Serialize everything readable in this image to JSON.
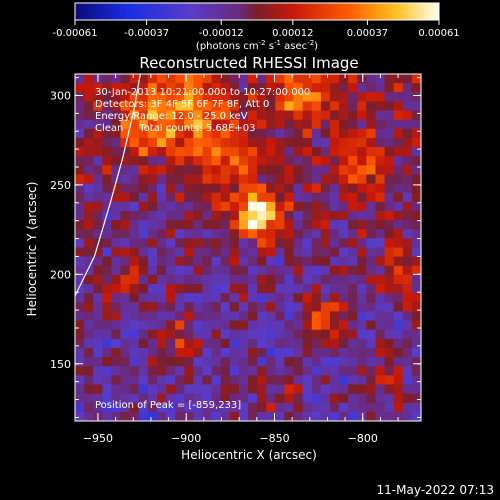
{
  "chart_data": {
    "type": "heatmap",
    "title": "Reconstructed RHESSI Image",
    "colorbar": {
      "ticks": [
        "-0.00061",
        "-0.00037",
        "-0.00012",
        "0.00012",
        "0.00037",
        "0.00061"
      ],
      "values": [
        -0.00061,
        -0.00037,
        -0.00012,
        0.00012,
        0.00037,
        0.00061
      ],
      "range": [
        -0.00061,
        0.00061
      ],
      "colormap": "rainbow-to-fire",
      "unit_prefix": "(photons cm",
      "unit_sup1": "-2",
      "unit_mid1": " s",
      "unit_sup2": "-1",
      "unit_mid2": " asec",
      "unit_sup3": "-2",
      "unit_suffix": ")"
    },
    "xlabel": "Heliocentric X (arcsec)",
    "ylabel": "Heliocentric Y (arcsec)",
    "xlim": [
      -963,
      -767
    ],
    "ylim": [
      118,
      312
    ],
    "xticks": [
      -950,
      -900,
      -850,
      -800
    ],
    "yticks": [
      150,
      200,
      250,
      300
    ],
    "xtick_labels": [
      "−950",
      "−900",
      "−850",
      "−800"
    ],
    "ytick_labels": [
      "150",
      "200",
      "250",
      "300"
    ],
    "annotations": [
      "30-Jan-2013 10:21:00.000 to 10:27:00.000",
      "Detectors: 3F 4F 5F 6F 7F 8F, Att 0",
      "Energy Range: 12.0 - 25.0 keV",
      "Clean     Total counts: 5.68E+03"
    ],
    "peak_label": "Position of Peak = [-859,233]",
    "peak": [
      -859,
      233
    ],
    "limb_curve": [
      [
        -963,
        188
      ],
      [
        -952,
        210
      ],
      [
        -943,
        240
      ],
      [
        -936,
        265
      ],
      [
        -930,
        290
      ],
      [
        -926,
        312
      ]
    ],
    "grid": false
  },
  "footer": {
    "timestamp": "11-May-2022 07:13"
  },
  "colors": {
    "background": "#000000",
    "text": "#ffffff"
  }
}
